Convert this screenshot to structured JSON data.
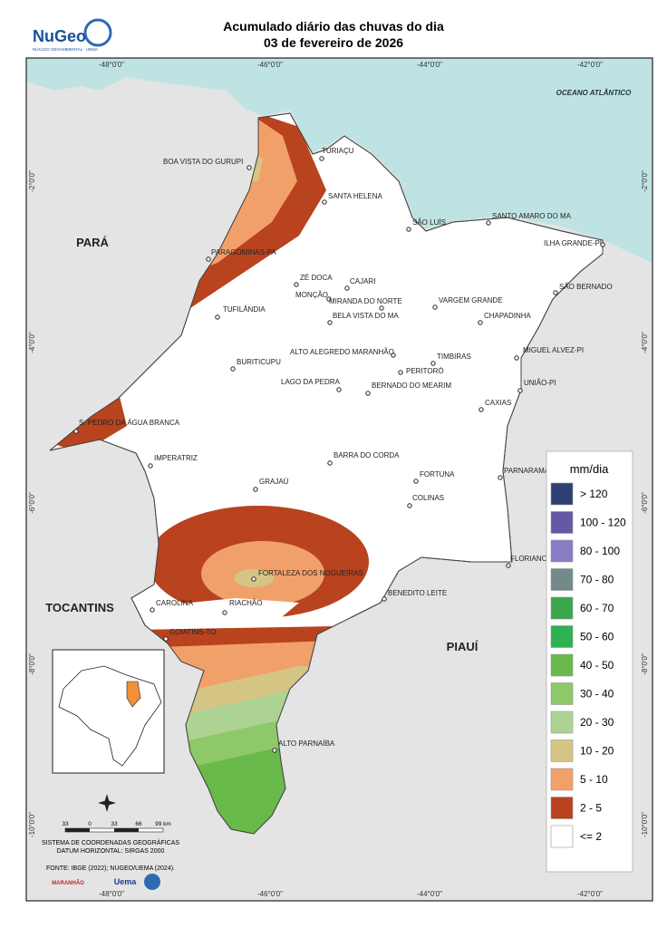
{
  "header": {
    "title_line1": "Acumulado diário das chuvas do dia",
    "title_line2": "03 de fevereiro de 2026"
  },
  "logo": {
    "name": "NuGeo",
    "subtitle": "NÚCLEO GEOAMBIENTAL - UEMA"
  },
  "grid": {
    "lon_labels": [
      "-48°0'0\"",
      "-46°0'0\"",
      "-44°0'0\"",
      "-42°0'0\""
    ],
    "lat_labels": [
      "-2°0'0\"",
      "-4°0'0\"",
      "-6°0'0\"",
      "-8°0'0\"",
      "-10°0'0\""
    ]
  },
  "map_labels": {
    "ocean": "OCEANO ATLÂNTICO",
    "states": [
      "PARÁ",
      "TOCANTINS",
      "PIAUÍ"
    ]
  },
  "cities": [
    "BOA VISTA DO GURUPI",
    "TURIAÇU",
    "SANTA HELENA",
    "SÃO LUÍS",
    "SANTO AMARO DO MA",
    "ILHA GRANDE-PI",
    "PARAGOMINAS-PA",
    "ZÉ DOCA",
    "CAJARI",
    "MONÇÃO",
    "SÃO BERNADO",
    "MIRANDA DO NORTE",
    "VARGEM GRANDE",
    "TUFILÂNDIA",
    "BELA VISTA DO MA",
    "CHAPADINHA",
    "ALTO ALEGREDO MARANHÃO",
    "MIGUEL ALVEZ-PI",
    "TIMBIRAS",
    "BURITICUPU",
    "PERITORÓ",
    "UNIÃO-PI",
    "LAGO DA PEDRA",
    "BERNADO DO MEARIM",
    "CAXIAS",
    "S. PEDRO DA ÁGUA BRANCA",
    "IMPERATRIZ",
    "BARRA DO CORDA",
    "PARNARAMA",
    "FORTUNA",
    "GRAJAÚ",
    "COLINAS",
    "FLORIANO",
    "FORTALEZA DOS NOGUEIRAS",
    "BENEDITO LEITE",
    "CAROLINA",
    "RIACHÃO",
    "GOIATINS-TO",
    "ALTO PARNAÍBA"
  ],
  "legend": {
    "title": "mm/dia",
    "classes": [
      {
        "label": "> 120",
        "color": "#2e3f74"
      },
      {
        "label": "100 - 120",
        "color": "#6657a7"
      },
      {
        "label": "80 - 100",
        "color": "#8a7cc4"
      },
      {
        "label": "70 - 80",
        "color": "#74898a"
      },
      {
        "label": "60 - 70",
        "color": "#3aa64b"
      },
      {
        "label": "50 - 60",
        "color": "#2db151"
      },
      {
        "label": "40 - 50",
        "color": "#69b94b"
      },
      {
        "label": "30 - 40",
        "color": "#8dc869"
      },
      {
        "label": "20 - 30",
        "color": "#acd393"
      },
      {
        "label": "10 - 20",
        "color": "#d5c585"
      },
      {
        "label": "5 - 10",
        "color": "#f2a06a"
      },
      {
        "label": "2 - 5",
        "color": "#b8431e"
      },
      {
        "label": "<= 2",
        "color": "#ffffff"
      }
    ]
  },
  "scale_bar": {
    "labels": [
      "33",
      "0",
      "33",
      "66",
      "99 km"
    ]
  },
  "footer": {
    "crs": "SISTEMA DE COORDENADAS GEOGRÁFICAS",
    "datum": "DATUM HORIZONTAL: SIRGAS 2000",
    "source": "FONTE: IBGE (2022); NUGEO/UEMA (2024).",
    "logos": [
      "MARANHÃO",
      "Uema"
    ]
  }
}
